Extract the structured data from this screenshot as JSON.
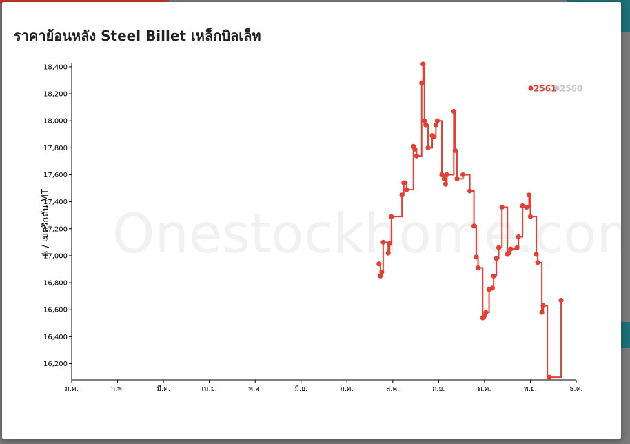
{
  "title": "ราคาย้อนหลัง Steel Billet เหล็กบิลเล็ท",
  "watermark": "Onestockhome.com",
  "colors": {
    "series_active": "#e53e33",
    "series_inactive": "#c8c8c8"
  },
  "chart_data": {
    "type": "line",
    "interpolation": "step",
    "ylabel": "฿ / เมตริกตัน MT",
    "xlabel": "",
    "ylim": [
      16080,
      18420
    ],
    "xlim": [
      0,
      11
    ],
    "yticks": [
      16200,
      16400,
      16600,
      16800,
      17000,
      17200,
      17400,
      17600,
      17800,
      18000,
      18200,
      18400
    ],
    "ytick_labels": [
      "16,200",
      "16,400",
      "16,600",
      "16,800",
      "17,000",
      "17,200",
      "17,400",
      "17,600",
      "17,800",
      "18,000",
      "18,200",
      "18,400"
    ],
    "xticks": [
      0,
      1,
      2,
      3,
      4,
      5,
      6,
      7,
      8,
      9,
      10,
      11
    ],
    "xtick_labels": [
      "ม.ค.",
      "ก.พ.",
      "มี.ค.",
      "เม.ย.",
      "พ.ค.",
      "มิ.ย.",
      "ก.ค.",
      "ส.ค.",
      "ก.ย.",
      "ต.ค.",
      "พ.ย.",
      "ธ.ค."
    ],
    "legend": {
      "placement": "top-right"
    },
    "series": [
      {
        "name": "2561",
        "active": true,
        "x": [
          6.7,
          6.73,
          6.76,
          6.79,
          6.9,
          6.93,
          6.97,
          7.2,
          7.24,
          7.27,
          7.3,
          7.45,
          7.48,
          7.52,
          7.63,
          7.66,
          7.69,
          7.72,
          7.77,
          7.86,
          7.89,
          7.94,
          7.97,
          8.07,
          8.12,
          8.15,
          8.18,
          8.33,
          8.36,
          8.4,
          8.53,
          8.68,
          8.77,
          8.82,
          8.86,
          8.96,
          8.99,
          9.03,
          9.1,
          9.17,
          9.2,
          9.26,
          9.31,
          9.38,
          9.5,
          9.53,
          9.57,
          9.71,
          9.74,
          9.83,
          9.92,
          9.97,
          10.0,
          10.13,
          10.16,
          10.25,
          10.28,
          10.37,
          10.41,
          10.67
        ],
        "y": [
          16940,
          16850,
          16880,
          17100,
          17020,
          17090,
          17290,
          17450,
          17540,
          17540,
          17490,
          17810,
          17790,
          17740,
          18280,
          18420,
          18000,
          17970,
          17800,
          17890,
          17880,
          17970,
          18000,
          17600,
          17570,
          17530,
          17600,
          18070,
          17780,
          17570,
          17600,
          17480,
          17220,
          16990,
          16910,
          16540,
          16550,
          16580,
          16750,
          16760,
          16850,
          16980,
          17060,
          17360,
          17010,
          17020,
          17050,
          17060,
          17140,
          17370,
          17360,
          17450,
          17290,
          17010,
          16950,
          16580,
          16630,
          16060,
          16100,
          16670
        ]
      },
      {
        "name": "2560",
        "active": false,
        "x": [],
        "y": []
      }
    ]
  }
}
